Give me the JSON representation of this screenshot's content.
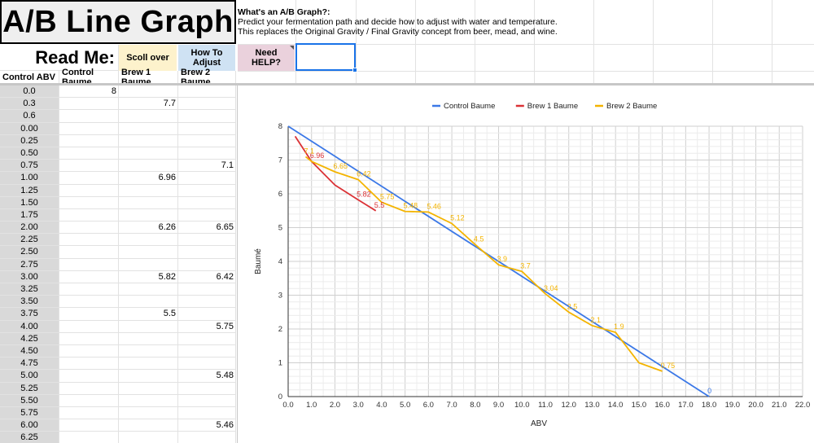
{
  "title": "A/B Line Graph",
  "info": {
    "question": "What's an A/B Graph?:",
    "line1": "Predict your fermentation path and decide how to adjust with water and temperature.",
    "line2": "This replaces the Original Gravity / Final Gravity concept from beer, mead, and wine."
  },
  "row2": {
    "read_me": "Read Me:",
    "scroll_over": "Scoll over",
    "how_to_adjust": "How To Adjust",
    "need_help": "Need HELP?"
  },
  "headers": {
    "abv": "Control ABV",
    "control": "Control Baume",
    "brew1": "Brew 1 Baume",
    "brew2": "Brew 2 Baume"
  },
  "colors": {
    "control": "#3b78e7",
    "brew1": "#db3236",
    "brew2": "#f4b400"
  },
  "rows": [
    {
      "abv": "0.0",
      "ctrl": "8",
      "b1": "",
      "b2": ""
    },
    {
      "abv": "0.3",
      "ctrl": "",
      "b1": "7.7",
      "b2": ""
    },
    {
      "abv": "0.6",
      "ctrl": "",
      "b1": "",
      "b2": ""
    },
    {
      "abv": "0.00",
      "ctrl": "",
      "b1": "",
      "b2": ""
    },
    {
      "abv": "0.25",
      "ctrl": "",
      "b1": "",
      "b2": ""
    },
    {
      "abv": "0.50",
      "ctrl": "",
      "b1": "",
      "b2": ""
    },
    {
      "abv": "0.75",
      "ctrl": "",
      "b1": "",
      "b2": "7.1"
    },
    {
      "abv": "1.00",
      "ctrl": "",
      "b1": "6.96",
      "b2": ""
    },
    {
      "abv": "1.25",
      "ctrl": "",
      "b1": "",
      "b2": ""
    },
    {
      "abv": "1.50",
      "ctrl": "",
      "b1": "",
      "b2": ""
    },
    {
      "abv": "1.75",
      "ctrl": "",
      "b1": "",
      "b2": ""
    },
    {
      "abv": "2.00",
      "ctrl": "",
      "b1": "6.26",
      "b2": "6.65"
    },
    {
      "abv": "2.25",
      "ctrl": "",
      "b1": "",
      "b2": ""
    },
    {
      "abv": "2.50",
      "ctrl": "",
      "b1": "",
      "b2": ""
    },
    {
      "abv": "2.75",
      "ctrl": "",
      "b1": "",
      "b2": ""
    },
    {
      "abv": "3.00",
      "ctrl": "",
      "b1": "5.82",
      "b2": "6.42"
    },
    {
      "abv": "3.25",
      "ctrl": "",
      "b1": "",
      "b2": ""
    },
    {
      "abv": "3.50",
      "ctrl": "",
      "b1": "",
      "b2": ""
    },
    {
      "abv": "3.75",
      "ctrl": "",
      "b1": "5.5",
      "b2": ""
    },
    {
      "abv": "4.00",
      "ctrl": "",
      "b1": "",
      "b2": "5.75"
    },
    {
      "abv": "4.25",
      "ctrl": "",
      "b1": "",
      "b2": ""
    },
    {
      "abv": "4.50",
      "ctrl": "",
      "b1": "",
      "b2": ""
    },
    {
      "abv": "4.75",
      "ctrl": "",
      "b1": "",
      "b2": ""
    },
    {
      "abv": "5.00",
      "ctrl": "",
      "b1": "",
      "b2": "5.48"
    },
    {
      "abv": "5.25",
      "ctrl": "",
      "b1": "",
      "b2": ""
    },
    {
      "abv": "5.50",
      "ctrl": "",
      "b1": "",
      "b2": ""
    },
    {
      "abv": "5.75",
      "ctrl": "",
      "b1": "",
      "b2": ""
    },
    {
      "abv": "6.00",
      "ctrl": "",
      "b1": "",
      "b2": "5.46"
    },
    {
      "abv": "6.25",
      "ctrl": "",
      "b1": "",
      "b2": ""
    }
  ],
  "chart_data": {
    "type": "line",
    "xlabel": "ABV",
    "ylabel": "Baumé",
    "xlim": [
      0,
      22
    ],
    "ylim": [
      0,
      8
    ],
    "xticks": [
      "0.0",
      "1.0",
      "2.0",
      "3.0",
      "4.0",
      "5.0",
      "6.0",
      "7.0",
      "8.0",
      "9.0",
      "10.0",
      "11.0",
      "12.0",
      "13.0",
      "14.0",
      "15.0",
      "16.0",
      "17.0",
      "18.0",
      "19.0",
      "20.0",
      "21.0",
      "22.0"
    ],
    "yticks": [
      "0",
      "1",
      "2",
      "3",
      "4",
      "5",
      "6",
      "7",
      "8"
    ],
    "grid": true,
    "legend_position": "top",
    "series": [
      {
        "name": "Control Baume",
        "color": "#3b78e7",
        "points": [
          [
            0,
            8
          ],
          [
            18,
            0
          ]
        ],
        "labels": [
          {
            "x": 18,
            "y": 0,
            "text": "0"
          }
        ]
      },
      {
        "name": "Brew 1 Baume",
        "color": "#db3236",
        "points": [
          [
            0.3,
            7.7
          ],
          [
            1.0,
            6.96
          ],
          [
            2.0,
            6.26
          ],
          [
            3.0,
            5.82
          ],
          [
            3.75,
            5.5
          ]
        ],
        "labels": [
          {
            "x": 1.0,
            "y": 6.96,
            "text": "6.96"
          },
          {
            "x": 3.0,
            "y": 5.82,
            "text": "5.82"
          },
          {
            "x": 3.75,
            "y": 5.5,
            "text": "5.5"
          }
        ]
      },
      {
        "name": "Brew 2 Baume",
        "color": "#f4b400",
        "points": [
          [
            0.75,
            7.1
          ],
          [
            1.0,
            6.96
          ],
          [
            2.0,
            6.65
          ],
          [
            3.0,
            6.42
          ],
          [
            4.0,
            5.75
          ],
          [
            5.0,
            5.48
          ],
          [
            6.0,
            5.46
          ],
          [
            7.0,
            5.12
          ],
          [
            8.0,
            4.5
          ],
          [
            9.0,
            3.9
          ],
          [
            10.0,
            3.7
          ],
          [
            11.0,
            3.04
          ],
          [
            12.0,
            2.5
          ],
          [
            13.0,
            2.1
          ],
          [
            14.0,
            1.9
          ],
          [
            15.0,
            1.0
          ],
          [
            16.0,
            0.75
          ]
        ],
        "labels": [
          {
            "x": 0.75,
            "y": 7.1,
            "text": "7.1"
          },
          {
            "x": 2.0,
            "y": 6.65,
            "text": "6.65"
          },
          {
            "x": 3.0,
            "y": 6.42,
            "text": "6.42"
          },
          {
            "x": 4.0,
            "y": 5.75,
            "text": "5.75"
          },
          {
            "x": 5.0,
            "y": 5.48,
            "text": "5.48"
          },
          {
            "x": 6.0,
            "y": 5.46,
            "text": "5.46"
          },
          {
            "x": 7.0,
            "y": 5.12,
            "text": "5.12"
          },
          {
            "x": 8.0,
            "y": 4.5,
            "text": "4.5"
          },
          {
            "x": 9.0,
            "y": 3.9,
            "text": "3.9"
          },
          {
            "x": 10.0,
            "y": 3.7,
            "text": "3.7"
          },
          {
            "x": 11.0,
            "y": 3.04,
            "text": "3.04"
          },
          {
            "x": 12.0,
            "y": 2.5,
            "text": "2.5"
          },
          {
            "x": 13.0,
            "y": 2.1,
            "text": "2.1"
          },
          {
            "x": 14.0,
            "y": 1.9,
            "text": "1.9"
          },
          {
            "x": 16.0,
            "y": 0.75,
            "text": "0.75"
          }
        ]
      }
    ]
  }
}
